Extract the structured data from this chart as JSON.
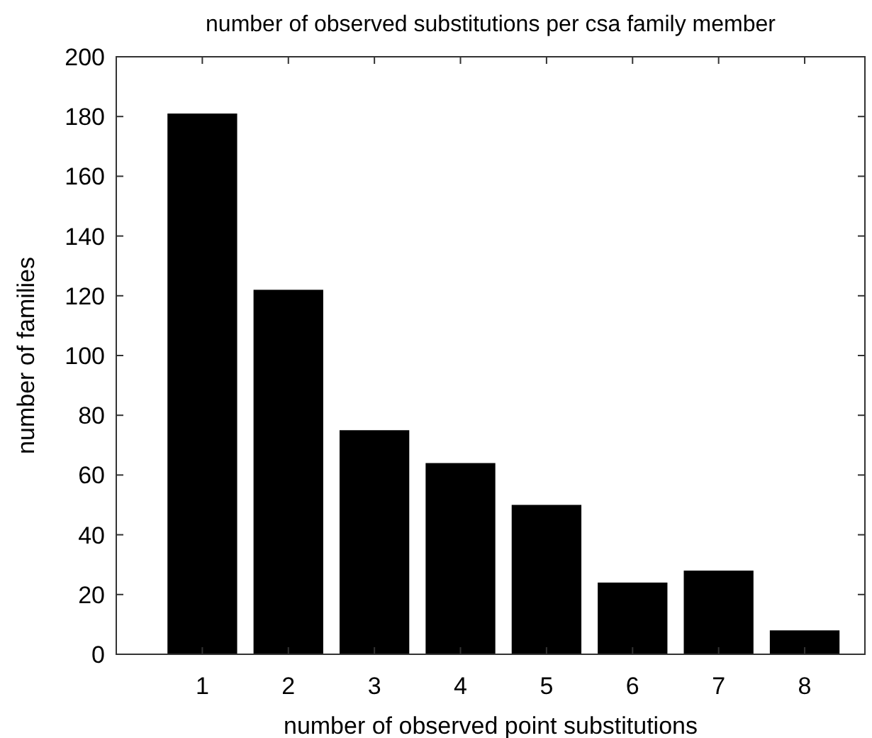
{
  "chart_data": {
    "type": "bar",
    "title": "number of observed substitutions per csa family member",
    "xlabel": "number of observed point substitutions",
    "ylabel": "number of families",
    "categories": [
      "1",
      "2",
      "3",
      "4",
      "5",
      "6",
      "7",
      "8"
    ],
    "values": [
      181,
      122,
      75,
      64,
      50,
      24,
      28,
      8
    ],
    "color": "#000000",
    "ylim": [
      0,
      200
    ],
    "yticks": [
      0,
      20,
      40,
      60,
      80,
      100,
      120,
      140,
      160,
      180,
      200
    ],
    "grid": false
  }
}
